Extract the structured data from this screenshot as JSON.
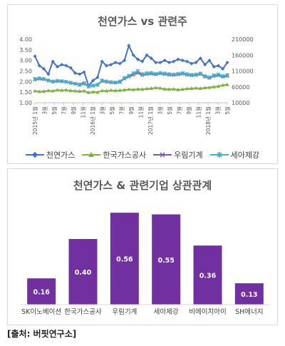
{
  "source": "[출처: 버핏연구소]",
  "chart_data": [
    {
      "type": "line",
      "title": "천연가스 vs 관련주",
      "ylim_left": [
        1.0,
        4.0
      ],
      "yticks_left": [
        "4.00",
        "3.50",
        "3.00",
        "2.50",
        "2.00",
        "1.50",
        "1.00"
      ],
      "ylim_right": [
        10000,
        210000
      ],
      "yticks_right": [
        "210000",
        "160000",
        "110000",
        "60000",
        "10000"
      ],
      "xtick_labels": [
        "7월",
        "9월",
        "11월",
        "2016년 1월",
        "3월",
        "5월",
        "7월",
        "9월",
        "11월",
        "2017년 1월",
        "3월",
        "5월",
        "7월",
        "9월",
        "11월",
        "2018년 1월",
        "3월",
        "5월"
      ],
      "x_labels_full": [
        "2015년 1월",
        "3월",
        "5월",
        "7월",
        "9월",
        "11월",
        "2016년 1월",
        "3월",
        "5월",
        "7월",
        "9월",
        "11월",
        "2017년 1월",
        "3월",
        "5월",
        "7월",
        "9월",
        "11월",
        "2018년 1월",
        "3월",
        "5월"
      ],
      "legend_position": "bottom",
      "series": [
        {
          "name": "천연가스",
          "axis": "left",
          "color": "#4472c4",
          "marker": "diamond",
          "values": [
            3.2,
            2.75,
            2.6,
            2.35,
            2.95,
            2.7,
            2.8,
            2.75,
            2.65,
            2.4,
            2.35,
            2.45,
            1.8,
            2.05,
            2.2,
            2.95,
            2.75,
            2.8,
            2.9,
            2.85,
            3.0,
            3.7,
            3.25,
            3.05,
            2.95,
            3.25,
            3.1,
            2.9,
            2.9,
            3.0,
            2.9,
            2.95,
            3.05,
            3.0,
            2.95,
            2.85,
            2.9,
            3.1,
            2.8,
            3.0,
            2.7,
            2.75,
            2.6,
            2.9
          ]
        },
        {
          "name": "한국가스공사",
          "axis": "right",
          "color": "#7fb241",
          "marker": "triangle",
          "values": [
            47000,
            45000,
            46000,
            48000,
            47000,
            50000,
            49000,
            50000,
            48000,
            47000,
            46000,
            47000,
            42000,
            44000,
            43000,
            48000,
            47000,
            49000,
            48000,
            49000,
            50000,
            52000,
            51000,
            53000,
            52000,
            54000,
            55000,
            57000,
            56000,
            53000,
            52000,
            53000,
            51000,
            52000,
            54000,
            55000,
            56000,
            55000,
            57000,
            58000,
            60000,
            62000,
            65000,
            67000
          ]
        },
        {
          "name": "우림기계",
          "axis": "right",
          "color": "#7b5ba6",
          "marker": "x",
          "values": [
            83000,
            85000,
            84000,
            80000,
            76000,
            78000,
            77000,
            76000,
            72000,
            70000,
            68000,
            72000,
            62000,
            64000,
            66000,
            78000,
            76000,
            74000,
            73000,
            75000,
            86000,
            92000,
            98000,
            104000,
            97000,
            100000,
            101000,
            99000,
            102000,
            100000,
            98000,
            97000,
            99000,
            101000,
            98000,
            96000,
            97000,
            100000,
            92000,
            88000,
            94000,
            96000,
            92000,
            94000
          ]
        },
        {
          "name": "세아제강",
          "axis": "right",
          "color": "#4bacc6",
          "marker": "star",
          "values": [
            85000,
            87000,
            85000,
            80000,
            77000,
            79000,
            78000,
            76000,
            73000,
            70000,
            66000,
            70000,
            61000,
            64000,
            67000,
            80000,
            77000,
            75000,
            74000,
            77000,
            88000,
            95000,
            103000,
            110000,
            100000,
            103000,
            104000,
            101000,
            104000,
            102000,
            100000,
            99000,
            101000,
            103000,
            100000,
            98000,
            99000,
            102000,
            94000,
            90000,
            96000,
            99000,
            94000,
            97000
          ]
        }
      ]
    },
    {
      "type": "bar",
      "title": "천연가스 & 관련기업 상관관계",
      "categories": [
        "SK이노베이션",
        "한국가스공사",
        "우림기계",
        "세아제강",
        "비에이치아이",
        "SH에너지"
      ],
      "values": [
        0.16,
        0.4,
        0.56,
        0.55,
        0.36,
        0.13
      ],
      "value_labels": [
        "0.16",
        "0.40",
        "0.56",
        "0.55",
        "0.36",
        "0.13"
      ],
      "ylim": [
        0,
        0.6
      ],
      "bar_color": "#7030a0"
    }
  ]
}
